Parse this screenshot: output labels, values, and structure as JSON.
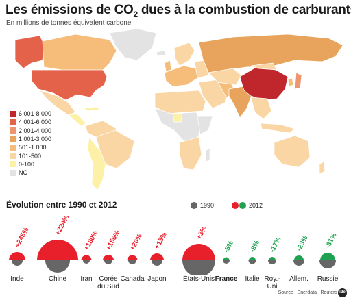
{
  "title_main": "Les émissions de CO",
  "title_sub": "2",
  "title_rest": " dues à la combustion de carburants",
  "subtitle": "En millions de tonnes équivalent carbone",
  "legend": [
    {
      "label": "6 001-8 000",
      "color": "#c0272d"
    },
    {
      "label": "4 001-6 000",
      "color": "#e4614a"
    },
    {
      "label": "2 001-4 000",
      "color": "#ef9470"
    },
    {
      "label": "1 001-3 000",
      "color": "#e8a45c"
    },
    {
      "label": "501-1 000",
      "color": "#f5bd79"
    },
    {
      "label": "101-500",
      "color": "#fad6a5"
    },
    {
      "label": "0-100",
      "color": "#fdf1a8"
    },
    {
      "label": "NC",
      "color": "#e3e3e3"
    }
  ],
  "evolution": {
    "title": "Évolution entre 1990 et 2012",
    "legend_1990": "1990",
    "legend_2012": "2012",
    "colors": {
      "y1990": "#666666",
      "up": "#e8202c",
      "down": "#1ea150"
    },
    "countries": [
      {
        "name": "Inde",
        "change": "+245%",
        "trend": "up",
        "bold": false
      },
      {
        "name": "Chine",
        "change": "+224%",
        "trend": "up",
        "bold": false
      },
      {
        "name": "Iran",
        "change": "+180%",
        "trend": "up",
        "bold": false
      },
      {
        "name": "Corée du Sud",
        "change": "+156%",
        "trend": "up",
        "bold": false
      },
      {
        "name": "Canada",
        "change": "+20%",
        "trend": "up",
        "bold": false
      },
      {
        "name": "Japon",
        "change": "+15%",
        "trend": "up",
        "bold": false
      },
      {
        "name": "États-Unis",
        "change": "+3%",
        "trend": "up",
        "bold": false
      },
      {
        "name": "France",
        "change": "-5%",
        "trend": "down",
        "bold": true
      },
      {
        "name": "Italie",
        "change": "-8%",
        "trend": "down",
        "bold": false
      },
      {
        "name": "Roy.-Uni",
        "change": "-17%",
        "trend": "down",
        "bold": false
      },
      {
        "name": "Allem.",
        "change": "-23%",
        "trend": "down",
        "bold": false
      },
      {
        "name": "Russie",
        "change": "-31%",
        "trend": "down",
        "bold": false
      }
    ]
  },
  "source": "Source : Enerdata",
  "credit": "Reuters",
  "logo_text": "idé"
}
